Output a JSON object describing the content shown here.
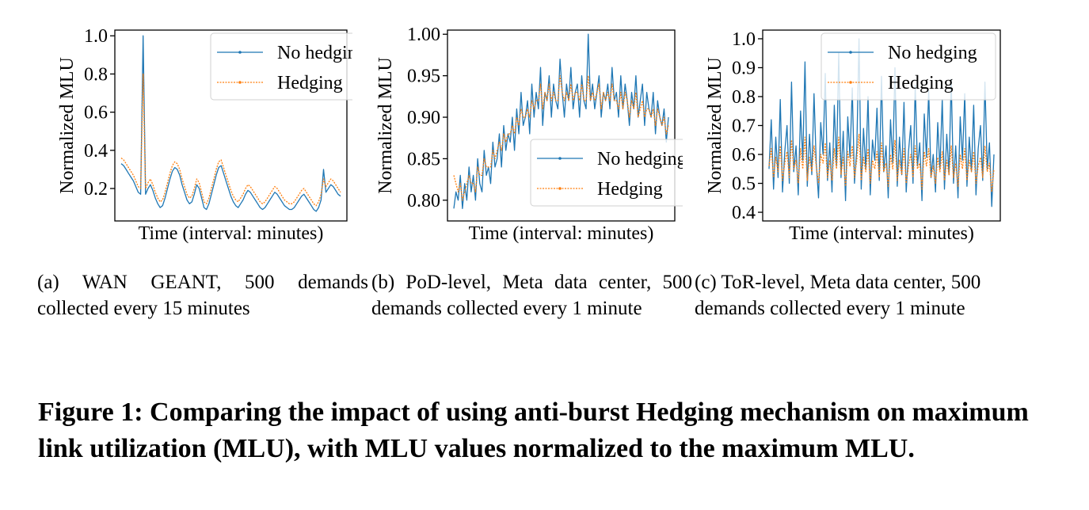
{
  "colors": {
    "no_hedging": "#1f77b4",
    "hedging": "#ff7f0e"
  },
  "chart_data": [
    {
      "type": "line",
      "subcaption": "(a)  WAN GEANT, 500 demands collected every 15 minutes",
      "xlabel": "Time (interval: minutes)",
      "ylabel": "Normalized MLU",
      "ylim": [
        0.03,
        1.03
      ],
      "yticks": [
        "0.2",
        "0.4",
        "0.6",
        "0.8",
        "1.0"
      ],
      "ytick_values": [
        0.2,
        0.4,
        0.6,
        0.8,
        1.0
      ],
      "legend_position": "upper-right",
      "x": {
        "count": 500
      },
      "series": [
        {
          "name": "No hedging",
          "color": "#1f77b4",
          "marker": "dot",
          "style": "solid",
          "values": [
            0.33,
            0.32,
            0.3,
            0.28,
            0.26,
            0.24,
            0.21,
            0.18,
            0.17,
            1.0,
            0.17,
            0.2,
            0.22,
            0.19,
            0.15,
            0.12,
            0.1,
            0.11,
            0.15,
            0.2,
            0.25,
            0.29,
            0.31,
            0.3,
            0.27,
            0.22,
            0.18,
            0.14,
            0.12,
            0.13,
            0.17,
            0.22,
            0.2,
            0.15,
            0.1,
            0.09,
            0.12,
            0.17,
            0.22,
            0.27,
            0.31,
            0.32,
            0.28,
            0.24,
            0.2,
            0.16,
            0.13,
            0.11,
            0.1,
            0.12,
            0.14,
            0.17,
            0.19,
            0.18,
            0.16,
            0.14,
            0.12,
            0.1,
            0.09,
            0.1,
            0.12,
            0.14,
            0.16,
            0.18,
            0.17,
            0.15,
            0.13,
            0.11,
            0.1,
            0.09,
            0.09,
            0.1,
            0.12,
            0.14,
            0.16,
            0.17,
            0.15,
            0.13,
            0.11,
            0.09,
            0.08,
            0.1,
            0.14,
            0.3,
            0.18,
            0.2,
            0.22,
            0.21,
            0.19,
            0.17,
            0.16
          ]
        },
        {
          "name": "Hedging",
          "color": "#ff7f0e",
          "marker": "dot",
          "style": "dotted",
          "values": [
            0.36,
            0.35,
            0.33,
            0.31,
            0.29,
            0.27,
            0.24,
            0.21,
            0.2,
            0.8,
            0.2,
            0.23,
            0.25,
            0.22,
            0.18,
            0.15,
            0.13,
            0.14,
            0.18,
            0.23,
            0.28,
            0.32,
            0.34,
            0.33,
            0.3,
            0.25,
            0.21,
            0.17,
            0.15,
            0.16,
            0.2,
            0.25,
            0.23,
            0.18,
            0.13,
            0.12,
            0.15,
            0.2,
            0.25,
            0.3,
            0.34,
            0.35,
            0.31,
            0.27,
            0.23,
            0.19,
            0.16,
            0.14,
            0.13,
            0.15,
            0.17,
            0.2,
            0.22,
            0.21,
            0.19,
            0.17,
            0.15,
            0.13,
            0.12,
            0.13,
            0.15,
            0.17,
            0.19,
            0.21,
            0.2,
            0.18,
            0.16,
            0.14,
            0.13,
            0.12,
            0.12,
            0.13,
            0.15,
            0.17,
            0.19,
            0.2,
            0.18,
            0.16,
            0.14,
            0.12,
            0.11,
            0.13,
            0.17,
            0.25,
            0.21,
            0.23,
            0.25,
            0.24,
            0.22,
            0.2,
            0.18
          ]
        }
      ],
      "legend": [
        "No hedging",
        "Hedging"
      ]
    },
    {
      "type": "line",
      "subcaption": "(b)  PoD-level,  Meta  data  center, 500  demands  collected  every  1 minute",
      "xlabel": "Time (interval: minutes)",
      "ylabel": "Normalized MLU",
      "ylim": [
        0.775,
        1.005
      ],
      "yticks": [
        "0.80",
        "0.85",
        "0.90",
        "0.95",
        "1.00"
      ],
      "ytick_values": [
        0.8,
        0.85,
        0.9,
        0.95,
        1.0
      ],
      "legend_position": "lower-right",
      "x": {
        "count": 500
      },
      "series": [
        {
          "name": "No hedging",
          "color": "#1f77b4",
          "marker": "dot",
          "style": "solid",
          "values": [
            0.79,
            0.81,
            0.8,
            0.83,
            0.79,
            0.82,
            0.8,
            0.84,
            0.81,
            0.83,
            0.8,
            0.85,
            0.82,
            0.81,
            0.86,
            0.83,
            0.84,
            0.82,
            0.87,
            0.84,
            0.85,
            0.88,
            0.84,
            0.89,
            0.86,
            0.88,
            0.87,
            0.9,
            0.86,
            0.91,
            0.88,
            0.93,
            0.89,
            0.9,
            0.92,
            0.88,
            0.94,
            0.9,
            0.93,
            0.91,
            0.96,
            0.89,
            0.93,
            0.92,
            0.95,
            0.9,
            0.94,
            0.92,
            0.91,
            0.97,
            0.93,
            0.9,
            0.94,
            0.92,
            0.96,
            0.91,
            0.93,
            0.94,
            0.9,
            0.95,
            0.92,
            0.91,
            1.0,
            0.92,
            0.94,
            0.91,
            0.93,
            0.95,
            0.9,
            0.93,
            0.92,
            0.94,
            0.91,
            0.96,
            0.92,
            0.93,
            0.9,
            0.95,
            0.91,
            0.94,
            0.92,
            0.89,
            0.93,
            0.91,
            0.95,
            0.9,
            0.92,
            0.94,
            0.89,
            0.93,
            0.91,
            0.9,
            0.93,
            0.88,
            0.92,
            0.9,
            0.89,
            0.91,
            0.87,
            0.9
          ]
        },
        {
          "name": "Hedging",
          "color": "#ff7f0e",
          "marker": "dot",
          "style": "dotted",
          "values": [
            0.83,
            0.82,
            0.81,
            0.82,
            0.8,
            0.81,
            0.82,
            0.83,
            0.82,
            0.82,
            0.81,
            0.84,
            0.83,
            0.83,
            0.85,
            0.84,
            0.84,
            0.84,
            0.86,
            0.85,
            0.86,
            0.87,
            0.86,
            0.88,
            0.87,
            0.88,
            0.88,
            0.89,
            0.88,
            0.9,
            0.89,
            0.91,
            0.9,
            0.9,
            0.91,
            0.9,
            0.92,
            0.91,
            0.92,
            0.92,
            0.94,
            0.91,
            0.93,
            0.92,
            0.94,
            0.92,
            0.93,
            0.92,
            0.92,
            0.95,
            0.93,
            0.92,
            0.93,
            0.92,
            0.94,
            0.92,
            0.93,
            0.93,
            0.92,
            0.94,
            0.92,
            0.92,
            0.95,
            0.92,
            0.93,
            0.92,
            0.93,
            0.94,
            0.91,
            0.93,
            0.92,
            0.93,
            0.92,
            0.94,
            0.92,
            0.92,
            0.91,
            0.93,
            0.91,
            0.93,
            0.92,
            0.9,
            0.92,
            0.91,
            0.93,
            0.9,
            0.91,
            0.92,
            0.9,
            0.91,
            0.91,
            0.9,
            0.91,
            0.89,
            0.91,
            0.9,
            0.89,
            0.9,
            0.88,
            0.89
          ]
        }
      ],
      "legend": [
        "No hedging",
        "Hedging"
      ]
    },
    {
      "type": "line",
      "subcaption": "(c)  ToR-level, Meta data center, 500 demands collected every 1 minute",
      "xlabel": "Time (interval: minutes)",
      "ylabel": "Normalized MLU",
      "ylim": [
        0.37,
        1.03
      ],
      "yticks": [
        "0.4",
        "0.5",
        "0.6",
        "0.7",
        "0.8",
        "0.9",
        "1.0"
      ],
      "ytick_values": [
        0.4,
        0.5,
        0.6,
        0.7,
        0.8,
        0.9,
        1.0
      ],
      "legend_position": "upper-left",
      "x": {
        "count": 500
      },
      "series": [
        {
          "name": "No hedging",
          "color": "#1f77b4",
          "marker": "dot",
          "style": "solid",
          "values": [
            0.55,
            0.72,
            0.48,
            0.66,
            0.52,
            0.79,
            0.47,
            0.61,
            0.7,
            0.5,
            0.85,
            0.54,
            0.63,
            0.46,
            0.75,
            0.58,
            0.92,
            0.49,
            0.67,
            0.53,
            0.81,
            0.57,
            0.45,
            0.71,
            0.6,
            0.88,
            0.51,
            0.64,
            0.47,
            0.77,
            0.56,
            0.95,
            0.52,
            0.68,
            0.44,
            0.73,
            0.59,
            0.83,
            0.5,
            0.62,
            1.0,
            0.48,
            0.69,
            0.55,
            0.8,
            0.46,
            0.65,
            0.58,
            0.76,
            0.51,
            0.87,
            0.54,
            0.63,
            0.45,
            0.72,
            0.57,
            0.9,
            0.49,
            0.66,
            0.53,
            0.78,
            0.47,
            0.61,
            0.7,
            0.5,
            0.84,
            0.56,
            0.64,
            0.44,
            0.74,
            0.59,
            0.82,
            0.52,
            0.6,
            0.47,
            0.71,
            0.55,
            0.79,
            0.48,
            0.67,
            0.53,
            0.86,
            0.5,
            0.63,
            0.45,
            0.73,
            0.58,
            0.81,
            0.49,
            0.66,
            0.54,
            0.77,
            0.46,
            0.62,
            0.7,
            0.51,
            0.85,
            0.55,
            0.64,
            0.42,
            0.6
          ]
        },
        {
          "name": "Hedging",
          "color": "#ff7f0e",
          "marker": "dot",
          "style": "dotted",
          "values": [
            0.56,
            0.62,
            0.52,
            0.59,
            0.54,
            0.63,
            0.51,
            0.57,
            0.61,
            0.52,
            0.65,
            0.55,
            0.58,
            0.5,
            0.62,
            0.55,
            0.66,
            0.51,
            0.59,
            0.54,
            0.63,
            0.56,
            0.5,
            0.6,
            0.57,
            0.64,
            0.52,
            0.58,
            0.51,
            0.62,
            0.55,
            0.66,
            0.53,
            0.59,
            0.49,
            0.61,
            0.56,
            0.63,
            0.52,
            0.58,
            0.67,
            0.51,
            0.59,
            0.54,
            0.62,
            0.5,
            0.58,
            0.55,
            0.61,
            0.52,
            0.64,
            0.54,
            0.57,
            0.49,
            0.6,
            0.55,
            0.65,
            0.51,
            0.58,
            0.53,
            0.62,
            0.5,
            0.56,
            0.6,
            0.52,
            0.63,
            0.55,
            0.57,
            0.48,
            0.61,
            0.56,
            0.62,
            0.52,
            0.56,
            0.5,
            0.59,
            0.54,
            0.61,
            0.51,
            0.58,
            0.53,
            0.63,
            0.52,
            0.57,
            0.49,
            0.6,
            0.55,
            0.62,
            0.51,
            0.58,
            0.54,
            0.61,
            0.5,
            0.56,
            0.59,
            0.52,
            0.63,
            0.54,
            0.57,
            0.47,
            0.55
          ]
        }
      ],
      "legend": [
        "No hedging",
        "Hedging"
      ]
    }
  ],
  "captions": {
    "a": "(a)  WAN GEANT, 500 demands collected every 15 minutes",
    "b": "(b)  PoD-level,  Meta  data  center, 500  demands  collected  every  1 minute",
    "c": "(c)  ToR-level, Meta data center, 500 demands collected every 1 minute"
  },
  "figure_caption": "Figure 1: Comparing the impact of using anti-burst Hedging mechanism on maximum link utilization (MLU), with MLU values normalized to the maximum MLU."
}
